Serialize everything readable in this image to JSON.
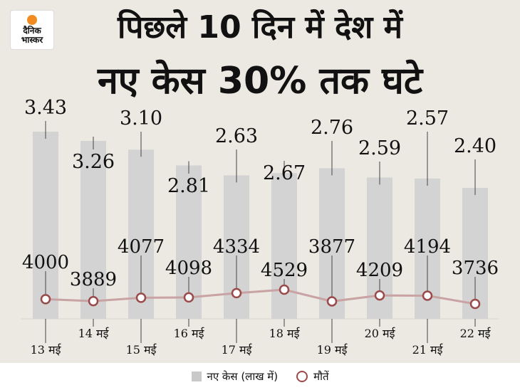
{
  "title_line1": "पिछले 10 दिन में देश में",
  "title_line2": "नए केस 30% तक घटे",
  "logo": {
    "line1": "दैनिक",
    "line2": "भास्कर",
    "icon": "sun-icon",
    "color": "#f28b20"
  },
  "colors": {
    "bar": "#d3d3d3",
    "line": "#c9a3a3",
    "marker_edge": "#9a4a4a",
    "background": "#ece8e2"
  },
  "legend": {
    "cases_label": "नए केस (लाख में)",
    "deaths_label": "मौतें"
  },
  "chart_data": {
    "type": "bar",
    "categories": [
      "13 मई",
      "14 मई",
      "15 मई",
      "16 मई",
      "17 मई",
      "18 मई",
      "19 मई",
      "20 मई",
      "21 मई",
      "22 मई"
    ],
    "series": [
      {
        "name": "नए केस (लाख में)",
        "type": "bar",
        "values": [
          3.43,
          3.26,
          3.1,
          2.81,
          2.63,
          2.67,
          2.76,
          2.59,
          2.57,
          2.4
        ],
        "labels": [
          "3.43",
          "3.26",
          "3.10",
          "2.81",
          "2.63",
          "2.67",
          "2.76",
          "2.59",
          "2.57",
          "2.40"
        ]
      },
      {
        "name": "मौतें",
        "type": "line",
        "values": [
          4000,
          3889,
          4077,
          4098,
          4334,
          4529,
          3877,
          4209,
          4194,
          3736
        ]
      }
    ],
    "legend_position": "bottom",
    "grid": false
  }
}
